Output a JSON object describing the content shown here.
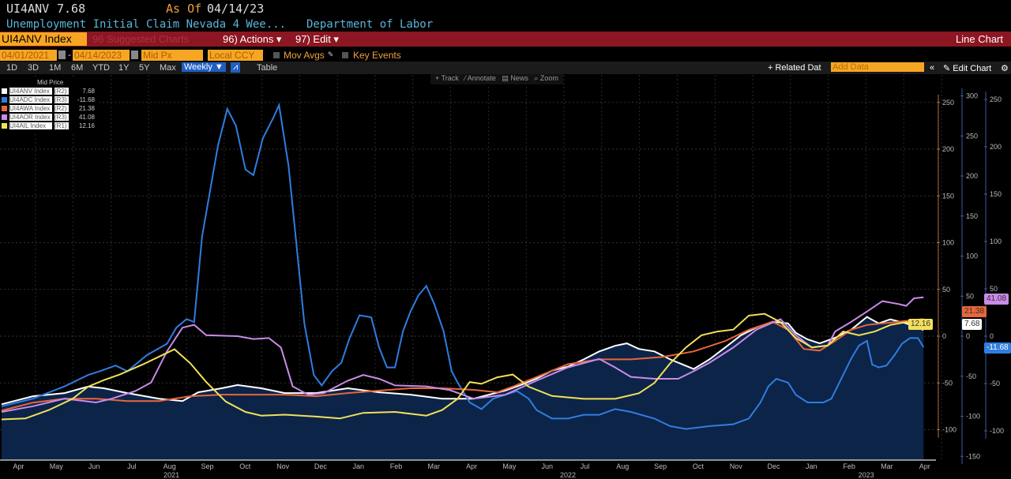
{
  "header": {
    "ticker": "UI4ANV",
    "last": "7.68",
    "as_of_label": "As Of",
    "as_of_date": "04/14/23",
    "description": "Unemployment Initial Claim Nevada 4 Wee...",
    "source": "Department of Labor"
  },
  "toolbar": {
    "security": "UI4ANV Index",
    "suggested": "96 Suggested Charts",
    "actions": "96) Actions ▾",
    "edit": "97) Edit ▾",
    "chart_type": "Line Chart",
    "start_date": "04/01/2021",
    "end_date": "04/14/2023",
    "price_field": "Mid Px",
    "currency": "Local CCY",
    "mov_avgs": "Mov Avgs",
    "key_events": "Key Events",
    "periods": [
      "1D",
      "3D",
      "1M",
      "6M",
      "YTD",
      "1Y",
      "5Y",
      "Max"
    ],
    "frequency": "Weekly ▼",
    "table": "Table",
    "related": "+ Related Dat",
    "add_data_placeholder": "Add Data",
    "edit_chart": "Edit Chart",
    "tools": [
      "+ Track",
      "⁄ Annotate",
      "▤ News",
      "⌕ Zoom"
    ]
  },
  "chart_data": {
    "type": "line",
    "title": "Mid Price",
    "xlabel": "",
    "ylabel": "",
    "x_unit": "months since 2021-04-01",
    "x_ticks": [
      "Apr",
      "May",
      "Jun",
      "Jul",
      "Aug",
      "Sep",
      "Oct",
      "Nov",
      "Dec",
      "Jan",
      "Feb",
      "Mar",
      "Apr",
      "May",
      "Jun",
      "Jul",
      "Aug",
      "Sep",
      "Oct",
      "Nov",
      "Dec",
      "Jan",
      "Feb",
      "Mar",
      "Apr"
    ],
    "years": [
      {
        "label": "2021",
        "t": 4.5
      },
      {
        "label": "2022",
        "t": 15
      },
      {
        "label": "2023",
        "t": 22.9
      }
    ],
    "axes": {
      "R1": {
        "ylim": [
          -100,
          250
        ],
        "ticks": [
          -100,
          -50,
          0,
          50,
          100,
          150,
          200,
          250
        ]
      },
      "R2": {
        "ylim": [
          -150,
          300
        ],
        "ticks": [
          -150,
          -100,
          -50,
          0,
          50,
          100,
          150,
          200,
          250,
          300
        ]
      },
      "R3": {
        "ylim": [
          -100,
          250
        ],
        "ticks": [
          -100,
          -50,
          0,
          50,
          100,
          150,
          200,
          250
        ]
      }
    },
    "series": [
      {
        "name": "UI4ANV Index",
        "axis": "R2",
        "axis_label": "(R2)",
        "last": "7.68",
        "color": "#ffffff",
        "fill": true,
        "points": [
          [
            0,
            -85
          ],
          [
            0.83,
            -75
          ],
          [
            1.67,
            -71
          ],
          [
            2.29,
            -63
          ],
          [
            2.71,
            -65
          ],
          [
            3.33,
            -71
          ],
          [
            4.17,
            -78
          ],
          [
            4.79,
            -81
          ],
          [
            5.21,
            -70
          ],
          [
            5.83,
            -65
          ],
          [
            6.25,
            -61
          ],
          [
            6.88,
            -65
          ],
          [
            7.5,
            -71
          ],
          [
            8.33,
            -71
          ],
          [
            9.17,
            -65
          ],
          [
            10,
            -70
          ],
          [
            10.83,
            -73
          ],
          [
            11.67,
            -78
          ],
          [
            12.5,
            -78
          ],
          [
            13.33,
            -68
          ],
          [
            13.75,
            -61
          ],
          [
            14.17,
            -53
          ],
          [
            14.58,
            -43
          ],
          [
            15,
            -38
          ],
          [
            15.42,
            -29
          ],
          [
            15.83,
            -19
          ],
          [
            16.25,
            -12
          ],
          [
            16.56,
            -9
          ],
          [
            16.88,
            -16
          ],
          [
            17.29,
            -19
          ],
          [
            17.71,
            -29
          ],
          [
            18.33,
            -41
          ],
          [
            18.75,
            -29
          ],
          [
            19.17,
            -14
          ],
          [
            19.58,
            1
          ],
          [
            20,
            11
          ],
          [
            20.42,
            18
          ],
          [
            20.83,
            16
          ],
          [
            21.04,
            4
          ],
          [
            21.35,
            -4
          ],
          [
            21.67,
            -9
          ],
          [
            22.08,
            -2
          ],
          [
            22.5,
            8
          ],
          [
            22.92,
            24
          ],
          [
            23.23,
            16
          ],
          [
            23.54,
            21
          ],
          [
            23.96,
            16
          ],
          [
            24.42,
            7.68
          ]
        ]
      },
      {
        "name": "UI4ADC Index",
        "axis": "R3",
        "axis_label": "(R3)",
        "last": "-11.68",
        "color": "#2f7de1",
        "points": [
          [
            0,
            -74
          ],
          [
            0.83,
            -66
          ],
          [
            1.67,
            -53
          ],
          [
            2.29,
            -41
          ],
          [
            2.6,
            -37
          ],
          [
            3.02,
            -31
          ],
          [
            3.33,
            -37
          ],
          [
            3.85,
            -20
          ],
          [
            4.38,
            -8
          ],
          [
            4.63,
            9
          ],
          [
            4.9,
            18
          ],
          [
            5.1,
            15
          ],
          [
            5.31,
            105
          ],
          [
            5.73,
            201
          ],
          [
            5.98,
            240
          ],
          [
            6.21,
            222
          ],
          [
            6.46,
            176
          ],
          [
            6.67,
            170
          ],
          [
            6.92,
            209
          ],
          [
            7.19,
            230
          ],
          [
            7.35,
            244
          ],
          [
            7.6,
            180
          ],
          [
            7.81,
            97
          ],
          [
            8.02,
            13
          ],
          [
            8.27,
            -41
          ],
          [
            8.48,
            -52
          ],
          [
            8.75,
            -37
          ],
          [
            9,
            -28
          ],
          [
            9.21,
            -3
          ],
          [
            9.48,
            22
          ],
          [
            9.79,
            20
          ],
          [
            10,
            -12
          ],
          [
            10.21,
            -33
          ],
          [
            10.42,
            -33
          ],
          [
            10.63,
            5
          ],
          [
            10.83,
            26
          ],
          [
            11.04,
            43
          ],
          [
            11.25,
            53
          ],
          [
            11.46,
            34
          ],
          [
            11.71,
            5
          ],
          [
            11.92,
            -37
          ],
          [
            12.08,
            -49
          ],
          [
            12.4,
            -70
          ],
          [
            12.71,
            -77
          ],
          [
            13.02,
            -66
          ],
          [
            13.33,
            -62
          ],
          [
            13.65,
            -58
          ],
          [
            13.96,
            -66
          ],
          [
            14.17,
            -78
          ],
          [
            14.58,
            -87
          ],
          [
            15,
            -87
          ],
          [
            15.42,
            -83
          ],
          [
            15.83,
            -83
          ],
          [
            16.25,
            -77
          ],
          [
            16.67,
            -80
          ],
          [
            17.29,
            -87
          ],
          [
            17.71,
            -95
          ],
          [
            18.13,
            -98
          ],
          [
            18.75,
            -95
          ],
          [
            19.38,
            -93
          ],
          [
            19.79,
            -87
          ],
          [
            20.1,
            -70
          ],
          [
            20.31,
            -53
          ],
          [
            20.52,
            -45
          ],
          [
            20.83,
            -49
          ],
          [
            21.04,
            -62
          ],
          [
            21.35,
            -70
          ],
          [
            21.77,
            -70
          ],
          [
            21.98,
            -66
          ],
          [
            22.19,
            -49
          ],
          [
            22.5,
            -24
          ],
          [
            22.71,
            -10
          ],
          [
            22.92,
            -5
          ],
          [
            23.06,
            -30
          ],
          [
            23.23,
            -33
          ],
          [
            23.44,
            -31
          ],
          [
            23.65,
            -20
          ],
          [
            23.85,
            -8
          ],
          [
            24.06,
            -2
          ],
          [
            24.27,
            -2
          ],
          [
            24.42,
            -11.68
          ]
        ]
      },
      {
        "name": "UI4AWA Index",
        "axis": "R2",
        "axis_label": "(R2)",
        "last": "21.38",
        "color": "#e8663a",
        "points": [
          [
            0,
            -93
          ],
          [
            0.83,
            -83
          ],
          [
            1.67,
            -78
          ],
          [
            2.5,
            -78
          ],
          [
            3.33,
            -81
          ],
          [
            4.17,
            -81
          ],
          [
            5,
            -75
          ],
          [
            5.83,
            -73
          ],
          [
            6.67,
            -73
          ],
          [
            7.5,
            -73
          ],
          [
            8.33,
            -75
          ],
          [
            9.17,
            -71
          ],
          [
            10,
            -68
          ],
          [
            10.83,
            -65
          ],
          [
            11.67,
            -65
          ],
          [
            12.5,
            -67
          ],
          [
            13.13,
            -70
          ],
          [
            13.54,
            -63
          ],
          [
            14.17,
            -51
          ],
          [
            15,
            -35
          ],
          [
            15.83,
            -29
          ],
          [
            16.67,
            -29
          ],
          [
            17.5,
            -26
          ],
          [
            18.33,
            -19
          ],
          [
            19.17,
            -6
          ],
          [
            19.79,
            8
          ],
          [
            20.42,
            18
          ],
          [
            20.83,
            8
          ],
          [
            21.25,
            -16
          ],
          [
            21.67,
            -18
          ],
          [
            22.08,
            -6
          ],
          [
            22.5,
            8
          ],
          [
            22.92,
            14
          ],
          [
            23.75,
            18
          ],
          [
            24.42,
            21.38
          ]
        ]
      },
      {
        "name": "UI4AOR Index",
        "axis": "R3",
        "axis_label": "(R3)",
        "last": "41.08",
        "color": "#c98be8",
        "points": [
          [
            0,
            -80
          ],
          [
            0.83,
            -74
          ],
          [
            1.67,
            -66
          ],
          [
            2.5,
            -70
          ],
          [
            2.92,
            -66
          ],
          [
            3.54,
            -58
          ],
          [
            3.96,
            -49
          ],
          [
            4.38,
            -16
          ],
          [
            4.79,
            9
          ],
          [
            5.1,
            12
          ],
          [
            5.42,
            1
          ],
          [
            6.25,
            0
          ],
          [
            6.67,
            -3
          ],
          [
            7.08,
            -2
          ],
          [
            7.4,
            -12
          ],
          [
            7.71,
            -53
          ],
          [
            8.13,
            -62
          ],
          [
            8.54,
            -60
          ],
          [
            9.17,
            -47
          ],
          [
            9.58,
            -41
          ],
          [
            10,
            -45
          ],
          [
            10.42,
            -52
          ],
          [
            11.25,
            -53
          ],
          [
            11.88,
            -57
          ],
          [
            12.5,
            -66
          ],
          [
            13.33,
            -62
          ],
          [
            14.17,
            -47
          ],
          [
            15,
            -33
          ],
          [
            15.83,
            -24
          ],
          [
            16.25,
            -33
          ],
          [
            16.67,
            -43
          ],
          [
            17.29,
            -45
          ],
          [
            17.92,
            -45
          ],
          [
            18.33,
            -37
          ],
          [
            18.75,
            -28
          ],
          [
            19.38,
            -12
          ],
          [
            20,
            7
          ],
          [
            20.63,
            18
          ],
          [
            21.04,
            1
          ],
          [
            21.46,
            -12
          ],
          [
            21.88,
            -10
          ],
          [
            22.08,
            5
          ],
          [
            22.5,
            15
          ],
          [
            22.92,
            26
          ],
          [
            23.33,
            37
          ],
          [
            23.75,
            34
          ],
          [
            23.96,
            32
          ],
          [
            24.17,
            40
          ],
          [
            24.42,
            41.08
          ]
        ]
      },
      {
        "name": "UI4AIL Index",
        "axis": "R1",
        "axis_label": "(R1)",
        "last": "12.16",
        "color": "#f2e05a",
        "points": [
          [
            0,
            -89
          ],
          [
            0.63,
            -88
          ],
          [
            1.25,
            -79
          ],
          [
            1.88,
            -67
          ],
          [
            2.29,
            -54
          ],
          [
            2.71,
            -47
          ],
          [
            3.13,
            -41
          ],
          [
            3.75,
            -30
          ],
          [
            4.27,
            -20
          ],
          [
            4.58,
            -14
          ],
          [
            5,
            -29
          ],
          [
            5.42,
            -49
          ],
          [
            5.94,
            -70
          ],
          [
            6.46,
            -81
          ],
          [
            6.88,
            -85
          ],
          [
            7.5,
            -84
          ],
          [
            8.33,
            -86
          ],
          [
            8.96,
            -88
          ],
          [
            9.58,
            -82
          ],
          [
            10.42,
            -81
          ],
          [
            11.25,
            -85
          ],
          [
            11.67,
            -79
          ],
          [
            12.08,
            -67
          ],
          [
            12.4,
            -49
          ],
          [
            12.71,
            -51
          ],
          [
            13.13,
            -44
          ],
          [
            13.54,
            -41
          ],
          [
            13.96,
            -54
          ],
          [
            14.58,
            -64
          ],
          [
            15.42,
            -67
          ],
          [
            16.25,
            -67
          ],
          [
            16.88,
            -61
          ],
          [
            17.29,
            -50
          ],
          [
            17.71,
            -29
          ],
          [
            18.13,
            -12
          ],
          [
            18.54,
            1
          ],
          [
            18.96,
            5
          ],
          [
            19.38,
            7
          ],
          [
            19.79,
            22
          ],
          [
            20.21,
            24
          ],
          [
            20.63,
            15
          ],
          [
            21.04,
            -2
          ],
          [
            21.46,
            -12
          ],
          [
            21.88,
            -10
          ],
          [
            22.29,
            5
          ],
          [
            22.71,
            1
          ],
          [
            23.13,
            5
          ],
          [
            23.54,
            12
          ],
          [
            23.96,
            15
          ],
          [
            24.42,
            12.16
          ]
        ]
      }
    ]
  }
}
